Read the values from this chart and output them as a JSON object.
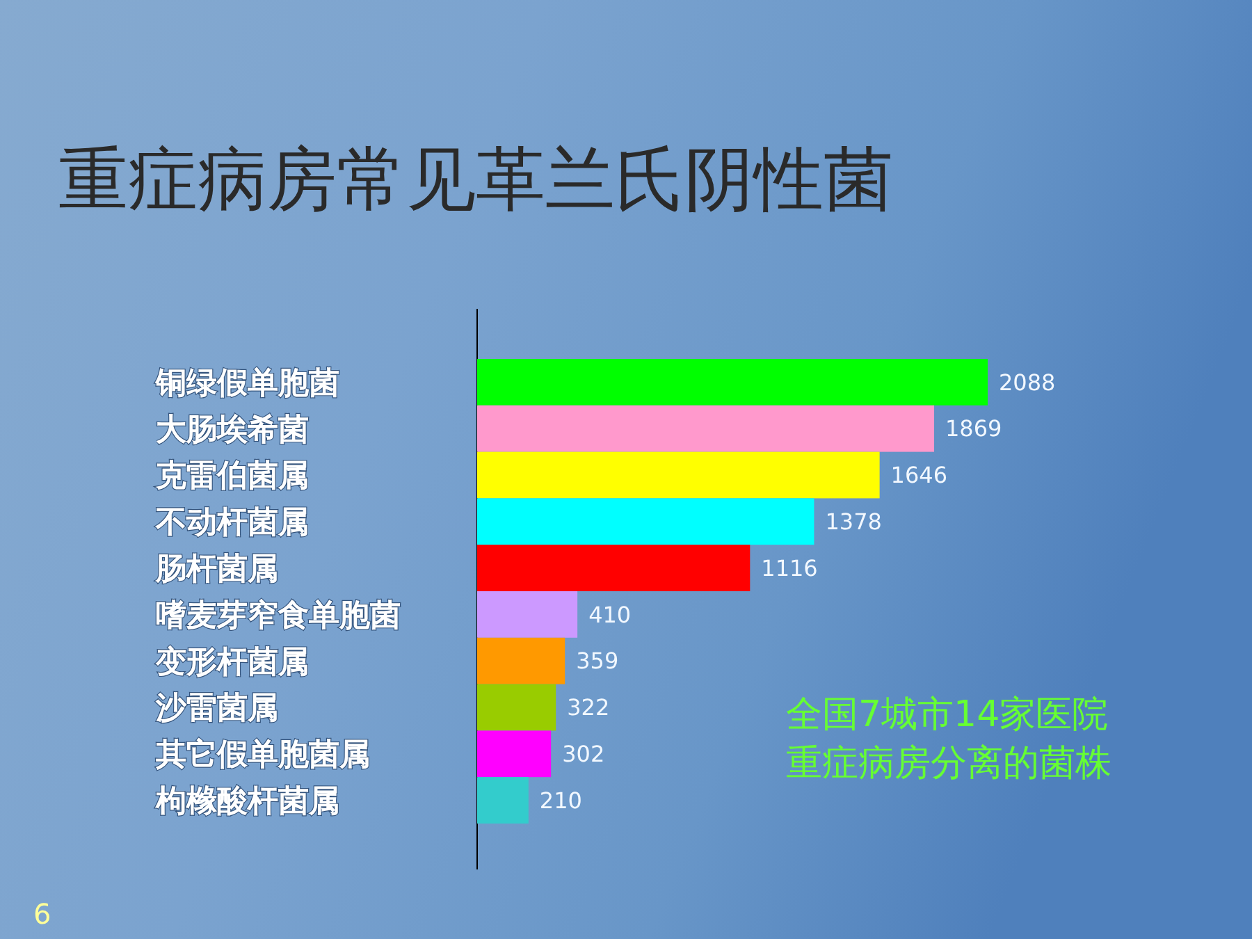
{
  "chart_data": {
    "type": "bar",
    "orientation": "horizontal",
    "title": "重症病房常见革兰氏阴性菌",
    "categories": [
      "铜绿假单胞菌",
      "大肠埃希菌",
      "克雷伯菌属",
      "不动杆菌属",
      "肠杆菌属",
      "嗜麦芽窄食单胞菌",
      "变形杆菌属",
      "沙雷菌属",
      "其它假单胞菌属",
      "枸橼酸杆菌属"
    ],
    "values": [
      2088,
      1869,
      1646,
      1378,
      1116,
      410,
      359,
      322,
      302,
      210
    ],
    "colors": [
      "#00ff00",
      "#ff99cc",
      "#ffff00",
      "#00ffff",
      "#ff0000",
      "#cc99ff",
      "#ff9900",
      "#99cc00",
      "#ff00ff",
      "#33cccc"
    ],
    "data_labels": true,
    "tick_labels": "y",
    "annotations": [
      "全国7城市14家医院",
      "重症病房分离的菌株",
      "6"
    ]
  }
}
